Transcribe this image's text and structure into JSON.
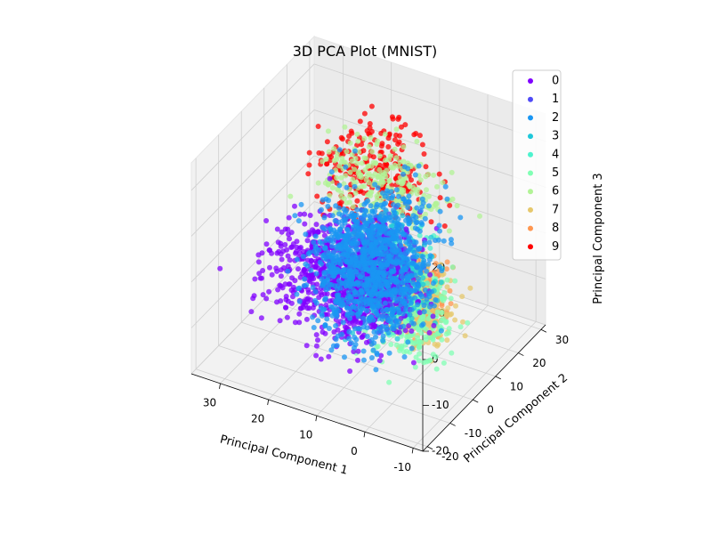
{
  "chart_data": {
    "type": "scatter",
    "projection": "3d",
    "title": "3D PCA Plot (MNIST)",
    "xlabel": "Principal Component 1",
    "ylabel": "Principal Component 2",
    "zlabel": "Principal Component 3",
    "xlim": [
      -12,
      36
    ],
    "ylim": [
      -22,
      32
    ],
    "zlim": [
      -20,
      26
    ],
    "xticks": [
      -10,
      0,
      10,
      20,
      30
    ],
    "yticks": [
      -20,
      -10,
      0,
      10,
      20,
      30
    ],
    "zticks": [
      -20,
      -10,
      0,
      10,
      20
    ],
    "grid": true,
    "legend_position": "top-right",
    "series": [
      {
        "name": "0",
        "color": "#8000ff",
        "center": [
          18,
          8,
          -8
        ],
        "spread": [
          7,
          7,
          5
        ]
      },
      {
        "name": "1",
        "color": "#4f4af7",
        "center": [
          8,
          0,
          2
        ],
        "spread": [
          3,
          4,
          4
        ]
      },
      {
        "name": "2",
        "color": "#1996f3",
        "center": [
          8,
          -2,
          4
        ],
        "spread": [
          5,
          7,
          7
        ]
      },
      {
        "name": "3",
        "color": "#1ec8da",
        "center": [
          4,
          -3,
          4
        ],
        "spread": [
          4,
          5,
          5
        ]
      },
      {
        "name": "4",
        "color": "#4df3ce",
        "center": [
          3,
          -6,
          6
        ],
        "spread": [
          3,
          4,
          5
        ]
      },
      {
        "name": "5",
        "color": "#81ffb4",
        "center": [
          -2,
          -6,
          -2
        ],
        "spread": [
          4,
          4,
          5
        ]
      },
      {
        "name": "6",
        "color": "#b2f396",
        "center": [
          12,
          10,
          14
        ],
        "spread": [
          6,
          4,
          4
        ]
      },
      {
        "name": "7",
        "color": "#e6c86c",
        "center": [
          -3,
          -8,
          2
        ],
        "spread": [
          4,
          3,
          4
        ]
      },
      {
        "name": "8",
        "color": "#ff964f",
        "center": [
          -4,
          -8,
          4
        ],
        "spread": [
          3,
          3,
          4
        ]
      },
      {
        "name": "9",
        "color": "#ff0000",
        "center": [
          14,
          12,
          14
        ],
        "spread": [
          6,
          4,
          5
        ]
      }
    ]
  }
}
